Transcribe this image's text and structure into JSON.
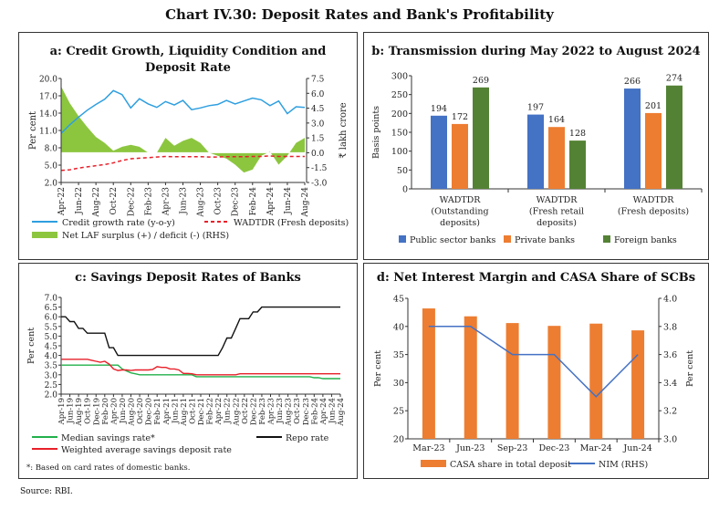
{
  "title": "Chart IV.30: Deposit Rates and Bank's Profitability",
  "source": "Source: RBI.",
  "chart_data": [
    {
      "id": "a",
      "type": "line+area",
      "title_lines": [
        "a: Credit Growth, Liquidity Condition and",
        "Deposit Rate"
      ],
      "ylabel": "Per cent",
      "ylabel_right": "₹ lakh crore",
      "ylim": [
        2.0,
        20.0
      ],
      "yticks": [
        "2.0",
        "5.0",
        "8.0",
        "11.0",
        "14.0",
        "17.0",
        "20.0"
      ],
      "ylim_right": [
        -3.0,
        7.5
      ],
      "yticks_right": [
        "-3.0",
        "-1.5",
        "0.0",
        "1.5",
        "3.0",
        "4.5",
        "6.0",
        "7.5"
      ],
      "x_tick_labels": [
        "Apr-22",
        "Jun-22",
        "Aug-22",
        "Oct-22",
        "Dec-22",
        "Feb-23",
        "Apr-23",
        "Jun-23",
        "Aug-23",
        "Oct-23",
        "Dec-23",
        "Feb-24",
        "Apr-24",
        "Jun-24",
        "Aug-24"
      ],
      "x_frequency": "monthly",
      "series": [
        {
          "name": "Credit growth rate (y-o-y)",
          "kind": "line",
          "axis": "left",
          "color": "#2e9fe0",
          "values": [
            10.5,
            12.0,
            13.3,
            14.5,
            15.5,
            16.4,
            17.9,
            17.2,
            14.9,
            16.5,
            15.6,
            15.0,
            16.0,
            15.4,
            16.2,
            14.6,
            14.9,
            15.3,
            15.5,
            16.2,
            15.6,
            16.1,
            16.6,
            16.3,
            15.3,
            16.1,
            13.9,
            15.1,
            15.0
          ]
        },
        {
          "name": "WADTDR (Fresh deposits)",
          "kind": "dashed-line",
          "axis": "left",
          "color": "#e8202a",
          "values": [
            4.1,
            4.2,
            4.5,
            4.7,
            4.9,
            5.1,
            5.4,
            5.8,
            6.1,
            6.2,
            6.3,
            6.4,
            6.5,
            6.45,
            6.45,
            6.45,
            6.45,
            6.4,
            6.4,
            6.45,
            6.45,
            6.45,
            6.5,
            6.5,
            6.6,
            6.5,
            6.5,
            6.5,
            6.5
          ]
        },
        {
          "name": "Net LAF surplus (+) / deficit (-) (RHS)",
          "kind": "area",
          "axis": "right",
          "color": "#8cc63f",
          "values": [
            6.7,
            5.0,
            3.7,
            2.6,
            1.6,
            1.0,
            0.2,
            0.6,
            0.8,
            0.6,
            0.0,
            0.0,
            1.5,
            0.7,
            1.2,
            1.5,
            1.0,
            0.0,
            -0.3,
            -0.6,
            -1.2,
            -2.0,
            -1.7,
            -0.3,
            0.1,
            -1.2,
            -0.3,
            1.0,
            1.5
          ]
        }
      ]
    },
    {
      "id": "b",
      "type": "bar",
      "title": "b: Transmission during May 2022 to August 2024",
      "ylabel": "Basis points",
      "ylim": [
        0,
        300
      ],
      "yticks": [
        "0",
        "50",
        "100",
        "150",
        "200",
        "250",
        "300"
      ],
      "categories": [
        [
          "WADTDR",
          "(Outstanding",
          "deposits)"
        ],
        [
          "WADTDR",
          "(Fresh retail",
          "deposits)"
        ],
        [
          "WADTDR",
          "(Fresh deposits)"
        ]
      ],
      "series": [
        {
          "name": "Public sector banks",
          "color": "#4472c4",
          "values": [
            194,
            197,
            266
          ]
        },
        {
          "name": "Private banks",
          "color": "#ed7d31",
          "values": [
            172,
            164,
            201
          ]
        },
        {
          "name": "Foreign banks",
          "color": "#548235",
          "values": [
            269,
            128,
            274
          ]
        }
      ]
    },
    {
      "id": "c",
      "type": "line",
      "title": "c: Savings Deposit Rates of Banks",
      "ylabel": "Per cent",
      "ylim": [
        2.0,
        7.0
      ],
      "yticks": [
        "2.0",
        "2.5",
        "3.0",
        "3.5",
        "4.0",
        "4.5",
        "5.0",
        "5.5",
        "6.0",
        "6.5",
        "7.0"
      ],
      "x_tick_labels": [
        "Apr-19",
        "Jun-19",
        "Aug-19",
        "Oct-19",
        "Dec-19",
        "Feb-20",
        "Apr-20",
        "Jun-20",
        "Aug-20",
        "Oct-20",
        "Dec-20",
        "Feb-21",
        "Apr-21",
        "Jun-21",
        "Aug-21",
        "Oct-21",
        "Dec-21",
        "Feb-22",
        "Apr-22",
        "Jun-22",
        "Aug-22",
        "Oct-22",
        "Dec-22",
        "Feb-23",
        "Apr-23",
        "Jun-23",
        "Aug-23",
        "Oct-23",
        "Dec-23",
        "Feb-24",
        "Apr-24",
        "Jun-24",
        "Aug-24"
      ],
      "x_frequency": "monthly",
      "footnote": "*: Based on card rates of domestic banks.",
      "series": [
        {
          "name": "Median savings rate*",
          "color": "#22b04b",
          "values": [
            3.5,
            3.5,
            3.5,
            3.5,
            3.5,
            3.5,
            3.5,
            3.5,
            3.5,
            3.5,
            3.5,
            3.5,
            3.5,
            3.5,
            3.3,
            3.2,
            3.1,
            3.05,
            3.0,
            3.0,
            3.0,
            3.0,
            3.0,
            3.0,
            3.0,
            3.0,
            3.0,
            3.0,
            3.0,
            3.0,
            3.0,
            2.9,
            2.9,
            2.9,
            2.9,
            2.9,
            2.9,
            2.9,
            2.9,
            2.9,
            2.9,
            2.9,
            2.9,
            2.9,
            2.9,
            2.9,
            2.9,
            2.9,
            2.9,
            2.9,
            2.9,
            2.9,
            2.9,
            2.9,
            2.9,
            2.9,
            2.9,
            2.9,
            2.85,
            2.85,
            2.8,
            2.8,
            2.8,
            2.8,
            2.8
          ]
        },
        {
          "name": "Repo rate",
          "color": "#111111",
          "values": [
            6.0,
            6.0,
            5.75,
            5.75,
            5.4,
            5.4,
            5.15,
            5.15,
            5.15,
            5.15,
            5.15,
            4.4,
            4.4,
            4.0,
            4.0,
            4.0,
            4.0,
            4.0,
            4.0,
            4.0,
            4.0,
            4.0,
            4.0,
            4.0,
            4.0,
            4.0,
            4.0,
            4.0,
            4.0,
            4.0,
            4.0,
            4.0,
            4.0,
            4.0,
            4.0,
            4.0,
            4.0,
            4.4,
            4.9,
            4.9,
            5.4,
            5.9,
            5.9,
            5.9,
            6.25,
            6.25,
            6.5,
            6.5,
            6.5,
            6.5,
            6.5,
            6.5,
            6.5,
            6.5,
            6.5,
            6.5,
            6.5,
            6.5,
            6.5,
            6.5,
            6.5,
            6.5,
            6.5,
            6.5,
            6.5
          ]
        },
        {
          "name": "Weighted average savings deposit rate",
          "color": "#e8202a",
          "values": [
            3.8,
            3.8,
            3.8,
            3.8,
            3.8,
            3.8,
            3.8,
            3.75,
            3.7,
            3.65,
            3.7,
            3.55,
            3.3,
            3.22,
            3.25,
            3.25,
            3.22,
            3.25,
            3.25,
            3.25,
            3.25,
            3.28,
            3.42,
            3.38,
            3.38,
            3.3,
            3.3,
            3.25,
            3.07,
            3.07,
            3.05,
            3.0,
            3.0,
            3.0,
            3.0,
            3.0,
            3.0,
            3.0,
            3.0,
            3.0,
            3.0,
            3.05,
            3.05,
            3.05,
            3.05,
            3.05,
            3.05,
            3.05,
            3.05,
            3.05,
            3.05,
            3.05,
            3.05,
            3.05,
            3.05,
            3.05,
            3.05,
            3.05,
            3.05,
            3.05,
            3.05,
            3.05,
            3.05,
            3.05,
            3.05
          ]
        }
      ]
    },
    {
      "id": "d",
      "type": "bar+line",
      "title": "d: Net Interest Margin and CASA Share of SCBs",
      "ylabel": "Per cent",
      "ylabel_right": "Per cent",
      "ylim": [
        20,
        45
      ],
      "yticks": [
        "20",
        "25",
        "30",
        "35",
        "40",
        "45"
      ],
      "ylim_right": [
        3.0,
        4.0
      ],
      "yticks_right": [
        "3.0",
        "3.2",
        "3.4",
        "3.6",
        "3.8",
        "4.0"
      ],
      "categories": [
        "Mar-23",
        "Jun-23",
        "Sep-23",
        "Dec-23",
        "Mar-24",
        "Jun-24"
      ],
      "series": [
        {
          "name": "CASA share in total deposit",
          "kind": "bar",
          "axis": "left",
          "color": "#ed7d31",
          "values": [
            43.2,
            41.8,
            40.6,
            40.1,
            40.5,
            39.3
          ]
        },
        {
          "name": "NIM (RHS)",
          "kind": "line",
          "axis": "right",
          "color": "#4472c4",
          "values": [
            3.8,
            3.8,
            3.6,
            3.6,
            3.3,
            3.6
          ]
        }
      ]
    }
  ]
}
